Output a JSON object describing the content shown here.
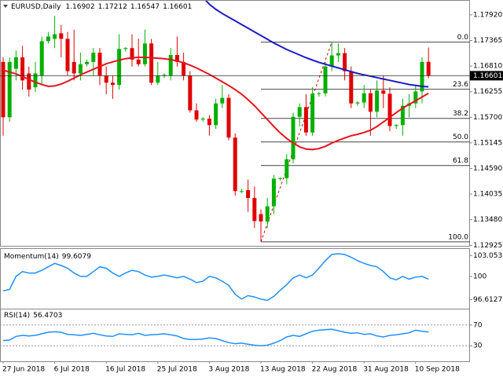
{
  "chart_data": [
    {
      "type": "candlestick",
      "title": "EURUSD,Daily",
      "categories": [
        "27 Jun 2018",
        null,
        null,
        null,
        null,
        null,
        null,
        null,
        "6 Jul 2018",
        null,
        null,
        null,
        null,
        null,
        null,
        null,
        "16 Jul 2018",
        null,
        null,
        null,
        null,
        null,
        null,
        null,
        "25 Jul 2018",
        null,
        null,
        null,
        null,
        null,
        null,
        null,
        "3 Aug 2018",
        null,
        null,
        null,
        null,
        null,
        null,
        null,
        "13 Aug 2018",
        null,
        null,
        null,
        null,
        null,
        null,
        null,
        "22 Aug 2018",
        null,
        null,
        null,
        null,
        null,
        null,
        null,
        "31 Aug 2018",
        null,
        null,
        null,
        null,
        null,
        null,
        null,
        "10 Sep 2018",
        null,
        null
      ],
      "open": [
        1.169,
        1.157,
        1.1675,
        1.17,
        1.1665,
        1.1635,
        1.166,
        1.1735,
        1.174,
        1.1752,
        1.174,
        1.169,
        1.1665,
        1.1685,
        1.169,
        1.171,
        1.166,
        1.1645,
        1.164,
        1.1718,
        1.172,
        1.1695,
        1.1685,
        1.173,
        1.1645,
        1.166,
        1.166,
        1.1705,
        1.169,
        1.166,
        1.1585,
        1.1565,
        1.1567,
        1.1553,
        1.16,
        1.1612,
        1.1526,
        1.141,
        1.1412,
        1.1395,
        1.136,
        1.1344,
        1.1377,
        1.1437,
        1.1438,
        1.1479,
        1.1571,
        1.1592,
        1.1537,
        1.1621,
        1.1622,
        1.168,
        1.1704,
        1.1709,
        1.167,
        1.16,
        1.1602,
        1.1622,
        1.1582,
        1.1628,
        1.1621,
        1.1551,
        1.1553,
        1.1595,
        1.16,
        1.1626,
        1.16902
      ],
      "high": [
        1.17,
        1.17,
        1.1715,
        1.1725,
        1.168,
        1.169,
        1.1745,
        1.1755,
        1.179,
        1.177,
        1.1755,
        1.176,
        1.171,
        1.1695,
        1.172,
        1.172,
        1.168,
        1.166,
        1.175,
        1.1722,
        1.175,
        1.174,
        1.176,
        1.174,
        1.169,
        1.1665,
        1.172,
        1.1745,
        1.171,
        1.167,
        1.16,
        1.157,
        1.1575,
        1.161,
        1.164,
        1.162,
        1.1535,
        1.1415,
        1.1435,
        1.142,
        1.137,
        1.1395,
        1.1445,
        1.144,
        1.149,
        1.158,
        1.16,
        1.162,
        1.1635,
        1.1625,
        1.169,
        1.1733,
        1.173,
        1.172,
        1.168,
        1.1605,
        1.164,
        1.163,
        1.165,
        1.166,
        1.1635,
        1.1555,
        1.161,
        1.162,
        1.164,
        1.17,
        1.17212
      ],
      "low": [
        1.153,
        1.156,
        1.165,
        1.163,
        1.1615,
        1.1625,
        1.164,
        1.173,
        1.172,
        1.17,
        1.166,
        1.165,
        1.165,
        1.168,
        1.166,
        1.164,
        1.162,
        1.161,
        1.163,
        1.1712,
        1.168,
        1.168,
        1.168,
        1.164,
        1.164,
        1.1655,
        1.165,
        1.168,
        1.165,
        1.158,
        1.156,
        1.156,
        1.153,
        1.1545,
        1.159,
        1.152,
        1.14,
        1.1405,
        1.1365,
        1.133,
        1.13,
        1.133,
        1.136,
        1.1433,
        1.1425,
        1.147,
        1.155,
        1.153,
        1.153,
        1.1615,
        1.1615,
        1.167,
        1.169,
        1.165,
        1.159,
        1.1595,
        1.159,
        1.153,
        1.157,
        1.159,
        1.154,
        1.1545,
        1.153,
        1.157,
        1.159,
        1.16,
        1.16547
      ],
      "close": [
        1.157,
        1.169,
        1.17,
        1.165,
        1.163,
        1.1665,
        1.1735,
        1.1745,
        1.175,
        1.174,
        1.167,
        1.1665,
        1.1685,
        1.169,
        1.171,
        1.166,
        1.1645,
        1.164,
        1.1718,
        1.172,
        1.1695,
        1.1685,
        1.173,
        1.1645,
        1.166,
        1.1662,
        1.1705,
        1.169,
        1.166,
        1.1585,
        1.1565,
        1.1567,
        1.1553,
        1.16,
        1.1612,
        1.1526,
        1.141,
        1.141,
        1.1395,
        1.1345,
        1.1344,
        1.1377,
        1.1437,
        1.1438,
        1.1479,
        1.1571,
        1.1592,
        1.1537,
        1.1621,
        1.1622,
        1.168,
        1.1704,
        1.1709,
        1.167,
        1.16,
        1.1602,
        1.1622,
        1.1582,
        1.1628,
        1.1621,
        1.1551,
        1.1553,
        1.1595,
        1.16,
        1.1626,
        1.169,
        1.16601
      ],
      "up_color": "#00b000",
      "down_color": "#e00000",
      "ylim": [
        1.12913,
        1.18225
      ],
      "yticks": [
        {
          "value": 1.1792,
          "label": "1.17920"
        },
        {
          "value": 1.17365,
          "label": "1.17365"
        },
        {
          "value": 1.1681,
          "label": "1.16810"
        },
        {
          "value": 1.16255,
          "label": "1.16255"
        },
        {
          "value": 1.157,
          "label": "1.15700"
        },
        {
          "value": 1.15145,
          "label": "1.15145"
        },
        {
          "value": 1.1459,
          "label": "1.14590"
        },
        {
          "value": 1.14035,
          "label": "1.14035"
        },
        {
          "value": 1.1348,
          "label": "1.13480"
        },
        {
          "value": 1.12925,
          "label": "1.12925"
        }
      ],
      "moving_averages": [
        {
          "color": "#e8141e",
          "values": [
            1.1672,
            1.1668,
            1.1664,
            1.1658,
            1.1652,
            1.1646,
            1.1641,
            1.1637,
            1.1638,
            1.1642,
            1.1648,
            1.1655,
            1.1662,
            1.1668,
            1.1674,
            1.168,
            1.1686,
            1.169,
            1.1694,
            1.1697,
            1.1699,
            1.17,
            1.17,
            1.1699,
            1.1698,
            1.1697,
            1.1695,
            1.1692,
            1.1688,
            1.1683,
            1.1677,
            1.167,
            1.1663,
            1.1655,
            1.1647,
            1.1639,
            1.163,
            1.162,
            1.1608,
            1.1595,
            1.158,
            1.1565,
            1.155,
            1.1536,
            1.1524,
            1.1514,
            1.1506,
            1.1501,
            1.15,
            1.1502,
            1.1507,
            1.1514,
            1.152,
            1.1525,
            1.153,
            1.1533,
            1.1537,
            1.1542,
            1.155,
            1.156,
            1.157,
            1.158,
            1.159,
            1.1598,
            1.1606,
            1.1614,
            1.1622
          ]
        },
        {
          "color": "#1c1cc4",
          "values": [
            null,
            null,
            null,
            null,
            null,
            null,
            null,
            null,
            null,
            null,
            null,
            null,
            null,
            null,
            null,
            null,
            null,
            null,
            null,
            null,
            null,
            null,
            null,
            null,
            null,
            null,
            null,
            null,
            null,
            null,
            null,
            1.183,
            1.1815,
            1.1804,
            1.1795,
            1.1787,
            1.1779,
            1.1771,
            1.1763,
            1.1755,
            1.1747,
            1.1739,
            1.1731,
            1.1724,
            1.1717,
            1.1711,
            1.1705,
            1.1699,
            1.1694,
            1.1689,
            1.1685,
            1.1681,
            1.1677,
            1.1673,
            1.1669,
            1.1665,
            1.1662,
            1.1659,
            1.1656,
            1.1653,
            1.165,
            1.1647,
            1.1644,
            1.1641,
            1.1639,
            1.1637,
            1.1636
          ]
        }
      ],
      "fibonacci": {
        "color": "#444444",
        "trend_x": [
          40,
          51
        ],
        "trend_y": [
          1.13,
          1.1733
        ],
        "levels": [
          {
            "label": "0.0",
            "price": 1.1733
          },
          {
            "label": "23.6",
            "price": 1.16308
          },
          {
            "label": "38.2",
            "price": 1.15676
          },
          {
            "label": "50.0",
            "price": 1.15165
          },
          {
            "label": "61.8",
            "price": 1.14654
          },
          {
            "label": "100.0",
            "price": 1.13
          }
        ]
      }
    },
    {
      "type": "line",
      "title": "Momentum(14)",
      "color": "#1e90ff",
      "values": [
        97.9,
        98.1,
        100.0,
        100.7,
        100.5,
        100.5,
        100.9,
        101.4,
        101.9,
        101.6,
        101.2,
        100.5,
        100.0,
        100.0,
        100.7,
        101.4,
        101.2,
        100.5,
        100.0,
        100.5,
        100.9,
        100.7,
        100.2,
        99.9,
        100.0,
        100.2,
        100.0,
        99.8,
        100.0,
        99.6,
        99.1,
        99.3,
        100.0,
        99.8,
        99.3,
        98.7,
        97.4,
        96.7,
        97.2,
        97.0,
        96.7,
        96.5,
        97.1,
        98.0,
        98.8,
        99.8,
        100.2,
        99.8,
        100.2,
        101.2,
        102.3,
        103.2,
        103.3,
        103.2,
        102.8,
        102.3,
        101.9,
        101.6,
        101.4,
        100.7,
        99.8,
        99.5,
        100.0,
        99.6,
        99.9,
        100.0,
        99.6079
      ],
      "ylim": [
        95.3,
        104.0
      ],
      "yticks": [
        103.0533,
        100,
        96.6127
      ]
    },
    {
      "type": "line",
      "title": "RSI(14)",
      "color": "#1e90ff",
      "values": [
        40,
        41,
        48,
        50,
        49,
        50,
        53,
        56,
        57,
        56,
        52,
        51,
        50,
        52,
        54,
        51,
        49,
        48,
        53,
        52,
        51,
        54,
        50,
        51,
        52,
        53,
        51,
        49,
        44,
        42,
        42,
        43,
        45,
        44,
        40,
        36,
        34,
        35,
        33,
        31,
        30,
        31,
        35,
        40,
        47,
        50,
        48,
        53,
        58,
        60,
        61,
        62,
        59,
        56,
        54,
        55,
        52,
        53,
        49,
        47,
        50,
        51,
        53,
        55,
        60,
        58,
        56.4703
      ],
      "ylim": [
        0,
        100
      ],
      "yticks": [
        70,
        30
      ],
      "grid": true
    }
  ]
}
